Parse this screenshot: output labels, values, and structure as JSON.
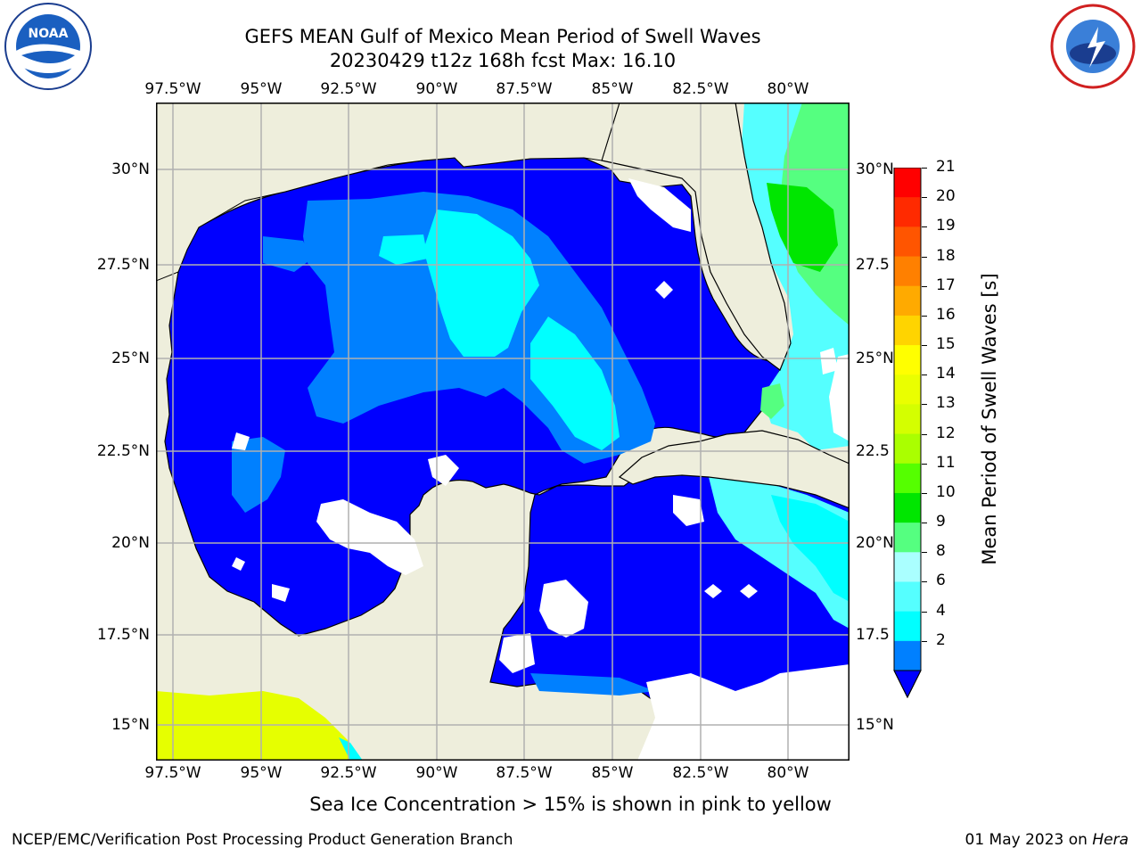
{
  "title": {
    "line1": "GEFS MEAN Gulf of Mexico Mean Period of Swell Waves",
    "line2": "20230429 t12z 168h fcst   Max: 16.10"
  },
  "logos": {
    "left": {
      "name": "NOAA",
      "ring_text": "NATIONAL OCEANIC AND ATMOSPHERIC ADMINISTRATION · U.S. DEPARTMENT OF COMMERCE"
    },
    "right": {
      "name": "NATIONAL WEATHER SERVICE"
    }
  },
  "axes": {
    "lon_labels": [
      "97.5°W",
      "95°W",
      "92.5°W",
      "90°W",
      "87.5°W",
      "85°W",
      "82.5°W",
      "80°W"
    ],
    "lat_labels_left": [
      "30°N",
      "27.5°N",
      "25°N",
      "22.5°N",
      "20°N",
      "17.5°N",
      "15°N"
    ],
    "lat_labels_right": [
      "30°N",
      "27.5",
      "25°N",
      "22.5",
      "20°N",
      "17.5",
      "15°N"
    ]
  },
  "colorbar": {
    "label": "Mean Period of Swell Waves [s]",
    "ticks": [
      "21",
      "20",
      "19",
      "18",
      "17",
      "16",
      "15",
      "14",
      "13",
      "12",
      "11",
      "10",
      "9",
      "8",
      "6",
      "4",
      "2"
    ],
    "colors": [
      "#ff0000",
      "#ff2a00",
      "#ff5500",
      "#ff8000",
      "#ffaa00",
      "#ffd400",
      "#ffff00",
      "#eaff00",
      "#d4ff00",
      "#aaff00",
      "#55ff00",
      "#00e600",
      "#55ff80",
      "#aaffff",
      "#55ffff",
      "#00ffff",
      "#0080ff"
    ],
    "extend_color": "#0000ff"
  },
  "map_colors": {
    "land": "#eeeedc",
    "deep_blue": "#0000ff",
    "mid_blue": "#0080ff",
    "cyan": "#00ffff",
    "light_cyan": "#55ffff",
    "green": "#55ff80",
    "bright_green": "#00e600",
    "yellow_green": "#e6ff00",
    "no_data": "#ffffff"
  },
  "note": "Sea Ice Concentration > 15% is shown in pink to yellow",
  "footer": {
    "left": "NCEP/EMC/Verification Post Processing Product Generation Branch",
    "right_prefix": "01 May 2023 on ",
    "right_machine": "Hera"
  }
}
